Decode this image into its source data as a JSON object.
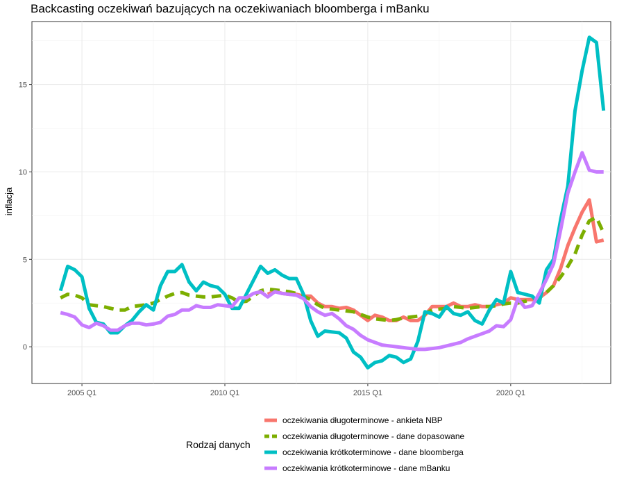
{
  "chart_data": {
    "type": "line",
    "title": "Backcasting oczekiwań bazujących na oczekiwaniach bloomberga i mBanku",
    "xlabel": "",
    "ylabel": "inflacja",
    "xlim": [
      2003.25,
      2023.5
    ],
    "ylim": [
      -2.1,
      18.6
    ],
    "x_ticks": [
      2005,
      2010,
      2015,
      2020
    ],
    "x_tick_labels": [
      "2005 Q1",
      "2010 Q1",
      "2015 Q1",
      "2020 Q1"
    ],
    "y_ticks": [
      0,
      5,
      10,
      15
    ],
    "y_tick_labels": [
      "0",
      "5",
      "10",
      "15"
    ],
    "grid": true,
    "legend": {
      "title": "Rodzaj danych",
      "position": "bottom"
    },
    "series": [
      {
        "name": "oczekiwania długoterminowe - ankieta NBP",
        "color": "#F8766D",
        "dash": "solid",
        "x": [
          2011.5,
          2011.75,
          2012.0,
          2012.25,
          2012.5,
          2012.75,
          2013.0,
          2013.25,
          2013.5,
          2013.75,
          2014.0,
          2014.25,
          2014.5,
          2014.75,
          2015.0,
          2015.25,
          2015.5,
          2015.75,
          2016.0,
          2016.25,
          2016.5,
          2016.75,
          2017.0,
          2017.25,
          2017.5,
          2017.75,
          2018.0,
          2018.25,
          2018.5,
          2018.75,
          2019.0,
          2019.25,
          2019.5,
          2019.75,
          2020.0,
          2020.25,
          2020.5,
          2020.75,
          2021.0,
          2021.25,
          2021.5,
          2021.75,
          2022.0,
          2022.25,
          2022.5,
          2022.75,
          2023.0,
          2023.25
        ],
        "y": [
          3.0,
          3.2,
          3.05,
          3.0,
          3.0,
          2.9,
          2.9,
          2.5,
          2.3,
          2.3,
          2.2,
          2.25,
          2.1,
          1.8,
          1.5,
          1.8,
          1.7,
          1.5,
          1.5,
          1.7,
          1.5,
          1.5,
          1.8,
          2.3,
          2.3,
          2.3,
          2.5,
          2.3,
          2.3,
          2.4,
          2.3,
          2.3,
          2.4,
          2.5,
          2.8,
          2.7,
          2.7,
          2.7,
          2.8,
          3.1,
          3.5,
          4.5,
          5.8,
          6.8,
          7.7,
          8.4,
          6.0,
          6.1
        ]
      },
      {
        "name": "oczekiwania długoterminowe - dane dopasowane",
        "color": "#7CAE00",
        "dash": "dashed",
        "x": [
          2004.25,
          2004.5,
          2004.75,
          2005.0,
          2005.25,
          2005.5,
          2005.75,
          2006.0,
          2006.25,
          2006.5,
          2006.75,
          2007.0,
          2007.25,
          2007.5,
          2007.75,
          2008.0,
          2008.25,
          2008.5,
          2008.75,
          2009.0,
          2009.25,
          2009.5,
          2009.75,
          2010.0,
          2010.25,
          2010.5,
          2010.75,
          2011.0,
          2011.25,
          2011.5,
          2011.75,
          2012.0,
          2012.25,
          2012.5,
          2012.75,
          2013.0,
          2013.25,
          2013.5,
          2013.75,
          2014.0,
          2014.25,
          2014.5,
          2014.75,
          2015.0,
          2015.25,
          2015.5,
          2015.75,
          2016.0,
          2016.25,
          2016.5,
          2016.75,
          2017.0,
          2017.25,
          2017.5,
          2017.75,
          2018.0,
          2018.25,
          2018.5,
          2018.75,
          2019.0,
          2019.25,
          2019.5,
          2019.75,
          2020.0,
          2020.25,
          2020.5,
          2020.75,
          2021.0,
          2021.25,
          2021.5,
          2021.75,
          2022.0,
          2022.25,
          2022.5,
          2022.75,
          2023.0,
          2023.25
        ],
        "y": [
          2.8,
          3.0,
          2.95,
          2.8,
          2.4,
          2.35,
          2.3,
          2.2,
          2.1,
          2.1,
          2.3,
          2.35,
          2.4,
          2.5,
          2.7,
          2.9,
          3.05,
          3.1,
          2.95,
          2.9,
          2.85,
          2.85,
          2.9,
          2.95,
          2.8,
          2.55,
          2.6,
          2.9,
          3.2,
          3.3,
          3.25,
          3.2,
          3.15,
          3.05,
          2.9,
          2.7,
          2.4,
          2.2,
          2.15,
          2.1,
          2.05,
          2.0,
          1.85,
          1.7,
          1.6,
          1.55,
          1.5,
          1.55,
          1.65,
          1.7,
          1.75,
          1.9,
          2.1,
          2.15,
          2.2,
          2.3,
          2.25,
          2.2,
          2.25,
          2.3,
          2.3,
          2.35,
          2.45,
          2.5,
          2.5,
          2.6,
          2.7,
          2.8,
          3.1,
          3.5,
          4.0,
          4.6,
          5.3,
          6.4,
          7.2,
          7.4,
          6.5
        ]
      },
      {
        "name": "oczekiwania krótkoterminowe - dane bloomberga",
        "color": "#00BFC4",
        "dash": "solid",
        "x": [
          2004.25,
          2004.5,
          2004.75,
          2005.0,
          2005.25,
          2005.5,
          2005.75,
          2006.0,
          2006.25,
          2006.5,
          2006.75,
          2007.0,
          2007.25,
          2007.5,
          2007.75,
          2008.0,
          2008.25,
          2008.5,
          2008.75,
          2009.0,
          2009.25,
          2009.5,
          2009.75,
          2010.0,
          2010.25,
          2010.5,
          2010.75,
          2011.0,
          2011.25,
          2011.5,
          2011.75,
          2012.0,
          2012.25,
          2012.5,
          2012.75,
          2013.0,
          2013.25,
          2013.5,
          2013.75,
          2014.0,
          2014.25,
          2014.5,
          2014.75,
          2015.0,
          2015.25,
          2015.5,
          2015.75,
          2016.0,
          2016.25,
          2016.5,
          2016.75,
          2017.0,
          2017.25,
          2017.5,
          2017.75,
          2018.0,
          2018.25,
          2018.5,
          2018.75,
          2019.0,
          2019.25,
          2019.5,
          2019.75,
          2020.0,
          2020.25,
          2020.5,
          2020.75,
          2021.0,
          2021.25,
          2021.5,
          2021.75,
          2022.0,
          2022.25,
          2022.5,
          2022.75,
          2023.0,
          2023.25
        ],
        "y": [
          3.2,
          4.6,
          4.4,
          4.0,
          2.2,
          1.4,
          1.3,
          0.8,
          0.8,
          1.2,
          1.5,
          2.0,
          2.4,
          2.1,
          3.5,
          4.3,
          4.3,
          4.7,
          3.7,
          3.2,
          3.7,
          3.5,
          3.4,
          3.0,
          2.2,
          2.2,
          3.0,
          3.8,
          4.6,
          4.2,
          4.4,
          4.1,
          3.9,
          3.9,
          3.0,
          1.5,
          0.6,
          0.9,
          0.85,
          0.8,
          0.5,
          -0.3,
          -0.6,
          -1.2,
          -0.9,
          -0.8,
          -0.5,
          -0.6,
          -0.9,
          -0.7,
          0.3,
          2.0,
          1.9,
          1.7,
          2.3,
          1.9,
          1.8,
          2.0,
          1.5,
          1.3,
          2.1,
          2.7,
          2.5,
          4.3,
          3.1,
          3.0,
          2.9,
          2.5,
          4.4,
          5.0,
          7.3,
          9.2,
          13.5,
          15.8,
          17.7,
          17.4,
          13.5
        ]
      },
      {
        "name": "oczekiwania krótkoterminowe - dane mBanku",
        "color": "#C77CFF",
        "dash": "solid",
        "x": [
          2004.25,
          2004.5,
          2004.75,
          2005.0,
          2005.25,
          2005.5,
          2005.75,
          2006.0,
          2006.25,
          2006.5,
          2006.75,
          2007.0,
          2007.25,
          2007.5,
          2007.75,
          2008.0,
          2008.25,
          2008.5,
          2008.75,
          2009.0,
          2009.25,
          2009.5,
          2009.75,
          2010.0,
          2010.25,
          2010.5,
          2010.75,
          2011.0,
          2011.25,
          2011.5,
          2011.75,
          2012.0,
          2012.25,
          2012.5,
          2012.75,
          2013.0,
          2013.25,
          2013.5,
          2013.75,
          2014.0,
          2014.25,
          2014.5,
          2014.75,
          2015.0,
          2015.25,
          2015.5,
          2015.75,
          2016.0,
          2016.25,
          2016.5,
          2016.75,
          2017.0,
          2017.25,
          2017.5,
          2017.75,
          2018.0,
          2018.25,
          2018.5,
          2018.75,
          2019.0,
          2019.25,
          2019.5,
          2019.75,
          2020.0,
          2020.25,
          2020.5,
          2020.75,
          2021.0,
          2021.25,
          2021.5,
          2021.75,
          2022.0,
          2022.25,
          2022.5,
          2022.75,
          2023.0,
          2023.25
        ],
        "y": [
          1.95,
          1.85,
          1.7,
          1.25,
          1.1,
          1.35,
          1.2,
          0.95,
          0.95,
          1.2,
          1.35,
          1.35,
          1.25,
          1.3,
          1.4,
          1.75,
          1.85,
          2.1,
          2.1,
          2.35,
          2.25,
          2.25,
          2.4,
          2.35,
          2.3,
          2.8,
          2.8,
          3.05,
          3.15,
          2.85,
          3.15,
          3.05,
          3.0,
          2.95,
          2.75,
          2.3,
          2.0,
          1.8,
          1.9,
          1.6,
          1.2,
          1.0,
          0.65,
          0.4,
          0.25,
          0.1,
          0.05,
          0.0,
          -0.05,
          -0.1,
          -0.15,
          -0.15,
          -0.1,
          -0.05,
          0.05,
          0.15,
          0.25,
          0.45,
          0.6,
          0.75,
          0.9,
          1.2,
          1.15,
          1.55,
          2.75,
          2.25,
          2.35,
          3.05,
          3.85,
          4.75,
          6.7,
          8.8,
          10.0,
          11.1,
          10.1,
          10.0,
          10.0
        ]
      }
    ]
  }
}
